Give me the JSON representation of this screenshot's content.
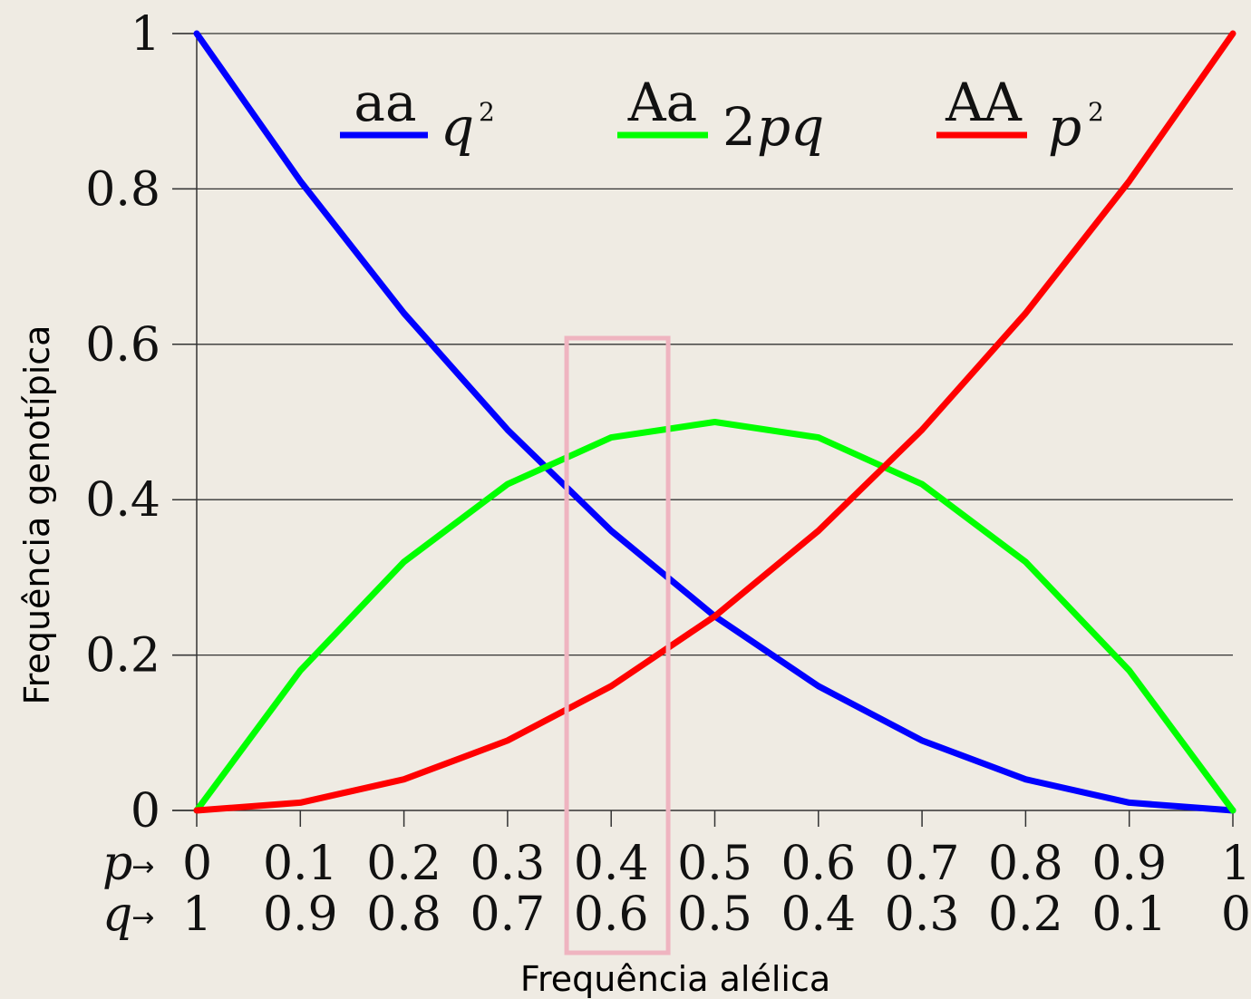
{
  "chart_data": {
    "type": "line",
    "xlabel": "Frequência alélica",
    "ylabel": "Frequência genotípica",
    "xlim": [
      0,
      1
    ],
    "ylim": [
      0,
      1
    ],
    "grid": "horizontal",
    "y_ticks": [
      "0",
      "0.2",
      "0.4",
      "0.6",
      "0.8",
      "1"
    ],
    "y_tick_values": [
      0,
      0.2,
      0.4,
      0.6,
      0.8,
      1
    ],
    "x_tick_values": [
      0,
      0.1,
      0.2,
      0.3,
      0.4,
      0.5,
      0.6,
      0.7,
      0.8,
      0.9,
      1
    ],
    "p_row": {
      "symbol": "p",
      "arrow": "→",
      "labels": [
        "0",
        "0.1",
        "0.2",
        "0.3",
        "0.4",
        "0.5",
        "0.6",
        "0.7",
        "0.8",
        "0.9",
        "1"
      ]
    },
    "q_row": {
      "symbol": "q",
      "arrow": "→",
      "labels": [
        "1",
        "0.9",
        "0.8",
        "0.7",
        "0.6",
        "0.5",
        "0.4",
        "0.3",
        "0.2",
        "0.1",
        "0"
      ]
    },
    "x": [
      0,
      0.1,
      0.2,
      0.3,
      0.4,
      0.5,
      0.6,
      0.7,
      0.8,
      0.9,
      1
    ],
    "series": [
      {
        "name": "aa",
        "expression": "q",
        "exponent": "2",
        "color": "#0000ff",
        "values": [
          1,
          0.81,
          0.64,
          0.49,
          0.36,
          0.25,
          0.16,
          0.09,
          0.04,
          0.01,
          0
        ]
      },
      {
        "name": "Aa",
        "expression_number": "2",
        "expression": "pq",
        "color": "#00ff00",
        "values": [
          0,
          0.18,
          0.32,
          0.42,
          0.48,
          0.5,
          0.48,
          0.42,
          0.32,
          0.18,
          0
        ]
      },
      {
        "name": "AA",
        "expression": "p",
        "exponent": "2",
        "color": "#ff0000",
        "values": [
          0,
          0.01,
          0.04,
          0.09,
          0.16,
          0.25,
          0.36,
          0.49,
          0.64,
          0.81,
          1
        ]
      }
    ],
    "highlight": {
      "x_range": [
        0.357,
        0.455
      ],
      "color": "#efb4c0"
    }
  }
}
